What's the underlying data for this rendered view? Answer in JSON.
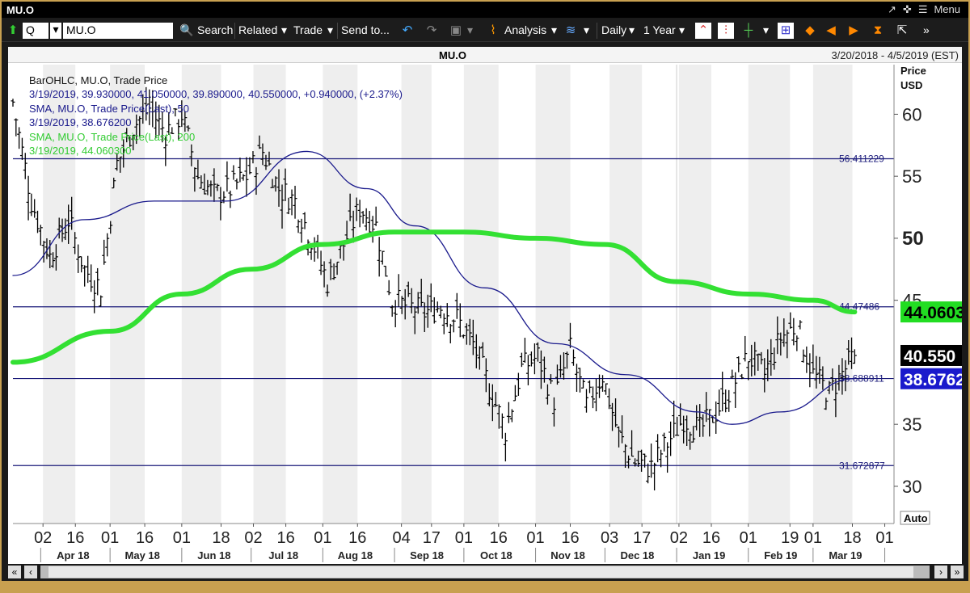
{
  "window": {
    "title": "MU.O",
    "menu_label": "Menu"
  },
  "toolbar": {
    "symbol_box": "Q",
    "ticker": "MU.O",
    "search": "Search",
    "related": "Related",
    "trade": "Trade",
    "send_to": "Send to...",
    "analysis": "Analysis",
    "interval": "Daily",
    "range": "1 Year"
  },
  "panel": {
    "symbol": "MU.O",
    "date_range": "3/20/2018 - 4/5/2019 (EST)"
  },
  "legend": {
    "line1": "BarOHLC, MU.O, Trade Price",
    "line2": "3/19/2019, 39.930000, 41.050000, 39.890000, 40.550000, +0.940000, (+2.37%)",
    "line3": "SMA, MU.O, Trade Price(Last), 50",
    "line4": "3/19/2019, 38.676200",
    "line5": "SMA, MU.O, Trade Price(Last), 200",
    "line6": "3/19/2019, 44.060300"
  },
  "axis": {
    "price_label": "Price",
    "currency": "USD",
    "auto_label": "Auto"
  },
  "chart_data": {
    "type": "bar",
    "subtype": "ohlc",
    "title": "MU.O",
    "ylabel": "Price USD",
    "ylim": [
      27,
      64
    ],
    "y_ticks": [
      30,
      35,
      45,
      50,
      55,
      60
    ],
    "x_ticks": [
      {
        "label": "02",
        "date": "2018-04-02"
      },
      {
        "label": "16",
        "date": "2018-04-16"
      },
      {
        "label": "01",
        "date": "2018-05-01"
      },
      {
        "label": "16",
        "date": "2018-05-16"
      },
      {
        "label": "01",
        "date": "2018-06-01"
      },
      {
        "label": "18",
        "date": "2018-06-18"
      },
      {
        "label": "02",
        "date": "2018-07-02"
      },
      {
        "label": "16",
        "date": "2018-07-16"
      },
      {
        "label": "01",
        "date": "2018-08-01"
      },
      {
        "label": "16",
        "date": "2018-08-16"
      },
      {
        "label": "04",
        "date": "2018-09-04"
      },
      {
        "label": "17",
        "date": "2018-09-17"
      },
      {
        "label": "01",
        "date": "2018-10-01"
      },
      {
        "label": "16",
        "date": "2018-10-16"
      },
      {
        "label": "01",
        "date": "2018-11-01"
      },
      {
        "label": "16",
        "date": "2018-11-16"
      },
      {
        "label": "03",
        "date": "2018-12-03"
      },
      {
        "label": "17",
        "date": "2018-12-17"
      },
      {
        "label": "02",
        "date": "2019-01-02"
      },
      {
        "label": "16",
        "date": "2019-01-16"
      },
      {
        "label": "01",
        "date": "2019-02-01"
      },
      {
        "label": "19",
        "date": "2019-02-19"
      },
      {
        "label": "01",
        "date": "2019-03-01"
      },
      {
        "label": "18",
        "date": "2019-03-18"
      },
      {
        "label": "01",
        "date": "2019-04-01"
      }
    ],
    "months": [
      {
        "label": "Apr 18",
        "date": "2018-04-15"
      },
      {
        "label": "May 18",
        "date": "2018-05-15"
      },
      {
        "label": "Jun 18",
        "date": "2018-06-15"
      },
      {
        "label": "Jul 18",
        "date": "2018-07-15"
      },
      {
        "label": "Aug 18",
        "date": "2018-08-15"
      },
      {
        "label": "Sep 18",
        "date": "2018-09-15"
      },
      {
        "label": "Oct 18",
        "date": "2018-10-15"
      },
      {
        "label": "Nov 18",
        "date": "2018-11-15"
      },
      {
        "label": "Dec 18",
        "date": "2018-12-15"
      },
      {
        "label": "Jan 19",
        "date": "2019-01-15"
      },
      {
        "label": "Feb 19",
        "date": "2019-02-15"
      },
      {
        "label": "Mar 19",
        "date": "2019-03-15"
      }
    ],
    "x_range": [
      "2018-03-20",
      "2019-04-05"
    ],
    "horizontal_lines": [
      {
        "value": 56.411229,
        "label": "56.411229"
      },
      {
        "value": 44.47486,
        "label": "44.47486"
      },
      {
        "value": 38.688911,
        "label": "38.688911"
      },
      {
        "value": 31.672877,
        "label": "31.672877"
      }
    ],
    "price_series": {
      "name": "BarOHLC, MU.O, Trade Price",
      "color": "#000000",
      "x": [
        "2018-03-20",
        "2018-03-28",
        "2018-04-05",
        "2018-04-13",
        "2018-04-20",
        "2018-04-27",
        "2018-05-04",
        "2018-05-11",
        "2018-05-18",
        "2018-05-25",
        "2018-06-01",
        "2018-06-08",
        "2018-06-15",
        "2018-06-22",
        "2018-06-29",
        "2018-07-06",
        "2018-07-13",
        "2018-07-20",
        "2018-07-27",
        "2018-08-03",
        "2018-08-10",
        "2018-08-17",
        "2018-08-24",
        "2018-08-31",
        "2018-09-07",
        "2018-09-14",
        "2018-09-21",
        "2018-09-28",
        "2018-10-05",
        "2018-10-12",
        "2018-10-19",
        "2018-10-26",
        "2018-11-02",
        "2018-11-09",
        "2018-11-16",
        "2018-11-23",
        "2018-11-30",
        "2018-12-07",
        "2018-12-14",
        "2018-12-21",
        "2018-12-28",
        "2019-01-04",
        "2019-01-11",
        "2019-01-18",
        "2019-01-25",
        "2019-02-01",
        "2019-02-08",
        "2019-02-15",
        "2019-02-22",
        "2019-03-01",
        "2019-03-08",
        "2019-03-15",
        "2019-03-19"
      ],
      "close": [
        61.0,
        53.0,
        48.5,
        51.5,
        47.5,
        46.0,
        56.0,
        59.0,
        60.5,
        58.5,
        60.0,
        55.0,
        53.5,
        54.0,
        55.0,
        57.0,
        54.0,
        53.0,
        50.0,
        46.5,
        49.5,
        52.5,
        51.0,
        45.0,
        44.5,
        44.0,
        44.5,
        43.5,
        41.5,
        38.0,
        34.5,
        39.5,
        40.5,
        37.0,
        41.0,
        36.5,
        39.0,
        34.0,
        32.0,
        31.5,
        33.5,
        35.5,
        34.5,
        36.0,
        38.0,
        40.5,
        39.0,
        42.0,
        43.0,
        39.0,
        37.5,
        39.5,
        40.55
      ],
      "last_ohlc": {
        "date": "3/19/2019",
        "open": 39.93,
        "high": 41.05,
        "low": 39.89,
        "close": 40.55,
        "change": 0.94,
        "change_pct": 2.37
      }
    },
    "series": [
      {
        "name": "SMA, MU.O, Trade Price(Last), 50",
        "color": "#1a1a8c",
        "x": [
          "2018-03-20",
          "2018-04-20",
          "2018-05-20",
          "2018-06-20",
          "2018-07-25",
          "2018-08-20",
          "2018-09-10",
          "2018-10-10",
          "2018-11-10",
          "2018-12-10",
          "2019-01-10",
          "2019-01-25",
          "2019-02-15",
          "2019-03-19"
        ],
        "values": [
          47.0,
          51.5,
          53.0,
          53.0,
          57.0,
          54.0,
          51.0,
          46.0,
          41.5,
          39.0,
          36.0,
          35.0,
          36.0,
          38.6762
        ]
      },
      {
        "name": "SMA, MU.O, Trade Price(Last), 200",
        "color": "#33e033",
        "x": [
          "2018-03-20",
          "2018-05-01",
          "2018-06-01",
          "2018-07-01",
          "2018-08-01",
          "2018-09-01",
          "2018-10-01",
          "2018-11-01",
          "2018-12-01",
          "2019-01-01",
          "2019-02-01",
          "2019-03-01",
          "2019-03-19"
        ],
        "values": [
          40.0,
          42.5,
          45.5,
          47.5,
          49.5,
          50.5,
          50.5,
          50.0,
          49.5,
          46.5,
          45.5,
          45.0,
          44.0603
        ]
      }
    ],
    "price_tags": [
      {
        "value": 44.0603,
        "label": "44.0603",
        "bg": "#22dd22",
        "color": "#000000"
      },
      {
        "value": 40.55,
        "label": "40.550",
        "bg": "#000000",
        "color": "#ffffff"
      },
      {
        "value": 38.6762,
        "label": "38.6762",
        "bg": "#1a1acc",
        "color": "#ffffff"
      }
    ],
    "grid": "alternating-vertical-bands",
    "legend_position": "top-left"
  }
}
